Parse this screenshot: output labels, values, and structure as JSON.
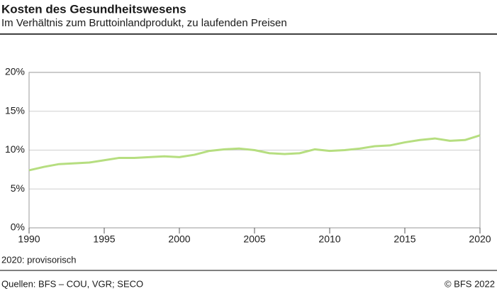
{
  "chart_data": {
    "type": "line",
    "title": "Kosten des Gesundheitswesens",
    "subtitle": "Im Verhältnis zum Bruttoinlandprodukt, zu laufenden Preisen",
    "x": [
      1990,
      1991,
      1992,
      1993,
      1994,
      1995,
      1996,
      1997,
      1998,
      1999,
      2000,
      2001,
      2002,
      2003,
      2004,
      2005,
      2006,
      2007,
      2008,
      2009,
      2010,
      2011,
      2012,
      2013,
      2014,
      2015,
      2016,
      2017,
      2018,
      2019,
      2020
    ],
    "series": [
      {
        "color": "#b6de80",
        "values": [
          7.4,
          7.85,
          8.2,
          8.3,
          8.4,
          8.7,
          9.0,
          9.0,
          9.1,
          9.2,
          9.1,
          9.4,
          9.9,
          10.1,
          10.2,
          10.0,
          9.6,
          9.5,
          9.6,
          10.1,
          9.9,
          10.0,
          10.2,
          10.5,
          10.6,
          11.0,
          11.3,
          11.5,
          11.2,
          11.3,
          11.9
        ]
      }
    ],
    "xlim": [
      1990,
      2020
    ],
    "xticks": [
      1990,
      1995,
      2000,
      2005,
      2010,
      2015,
      2020
    ],
    "ylim": [
      0,
      20
    ],
    "yticks": [
      {
        "value": 0,
        "label": "0%"
      },
      {
        "value": 5,
        "label": "5%"
      },
      {
        "value": 10,
        "label": "10%"
      },
      {
        "value": 15,
        "label": "15%"
      },
      {
        "value": 20,
        "label": "20%"
      }
    ],
    "grid": true,
    "note": "2020: provisorisch",
    "source": "Quellen: BFS – COU, VGR; SECO",
    "copyright": "© BFS 2022"
  }
}
